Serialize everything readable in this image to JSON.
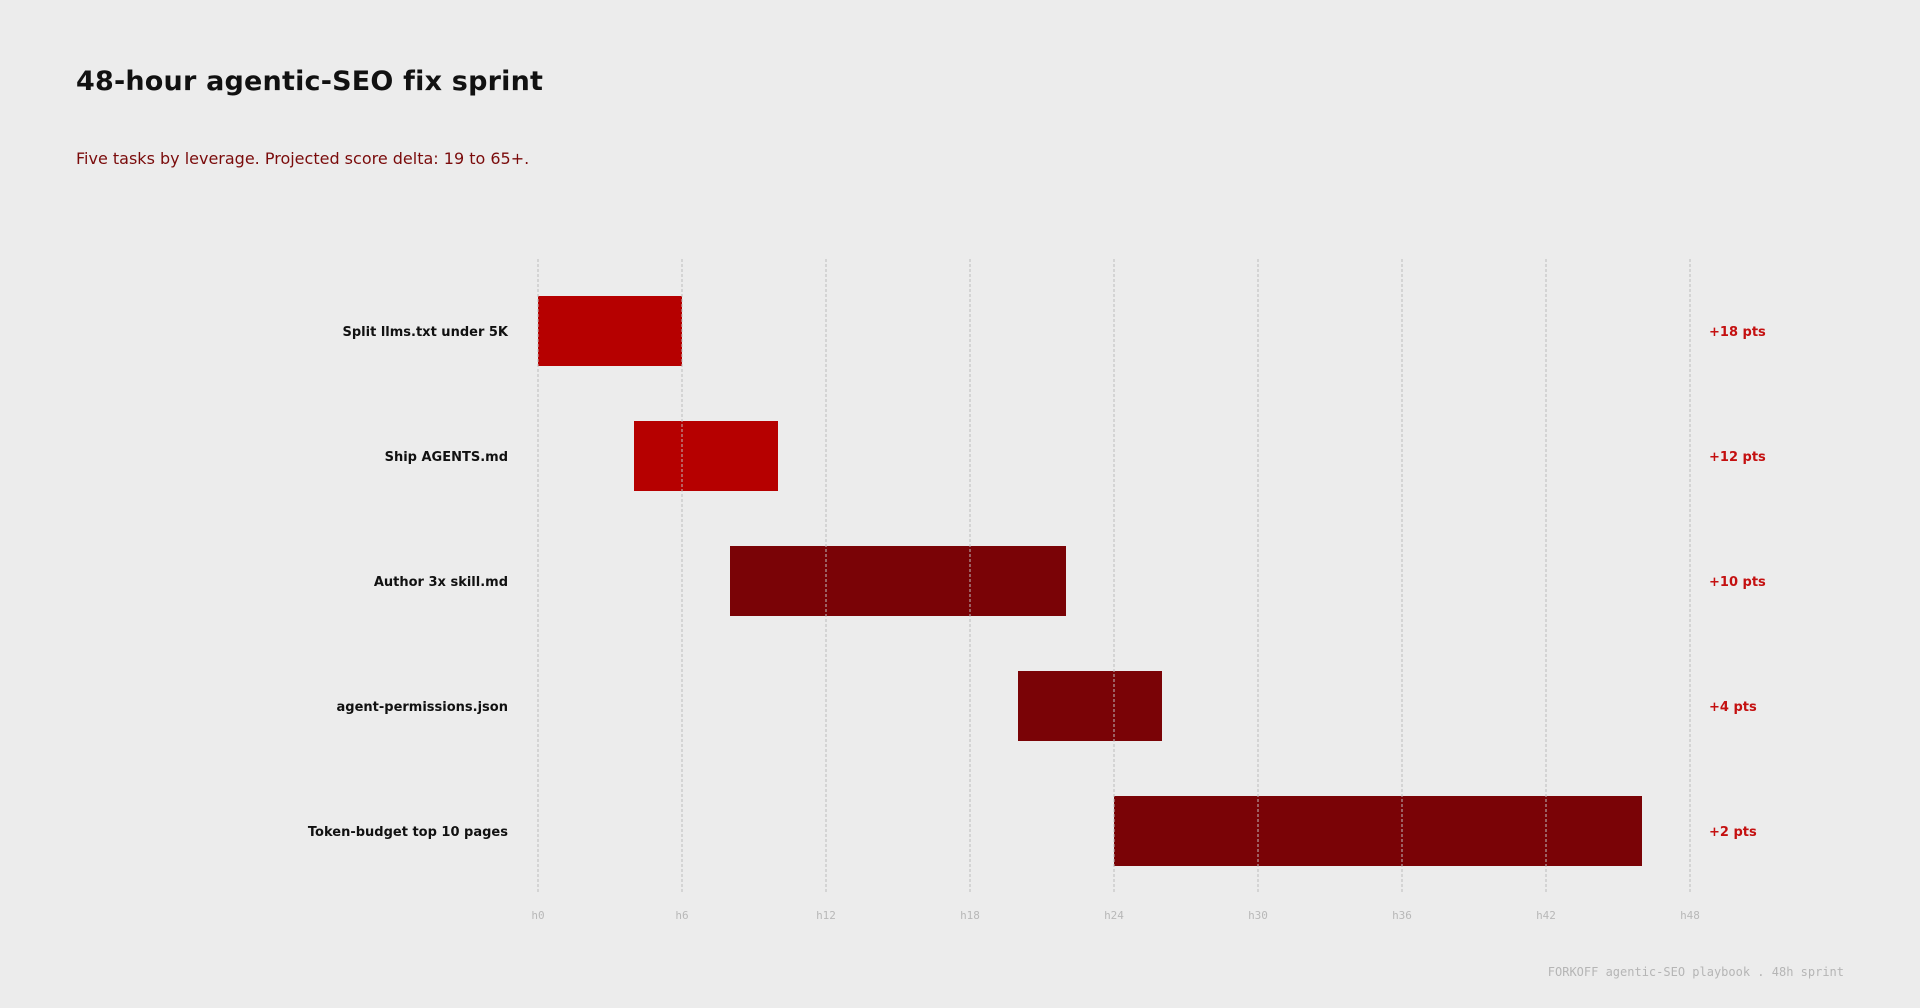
{
  "title": "48-hour agentic-SEO fix sprint",
  "subtitle": "Five tasks by leverage. Projected score delta: 19 to 65+.",
  "footer": "FORKOFF agentic-SEO playbook . 48h sprint",
  "colors": {
    "background": "#ececec",
    "high_leverage": "#b60000",
    "lower_leverage": "#7a0306",
    "delta_text": "#c41010",
    "grid": "#bdbdbd",
    "tick_text": "#b8b8b8",
    "label_text": "#111111"
  },
  "chart_data": {
    "type": "gantt",
    "x_ticks": [
      "h0",
      "h6",
      "h12",
      "h18",
      "h24",
      "h30",
      "h36",
      "h42",
      "h48"
    ],
    "xlim": [
      0,
      48
    ],
    "grid": "vertical dashed",
    "tasks": [
      {
        "label": "Split llms.txt under 5K",
        "start": 0,
        "end": 6,
        "delta": "+18 pts",
        "tier": "high"
      },
      {
        "label": "Ship AGENTS.md",
        "start": 4,
        "end": 10,
        "delta": "+12 pts",
        "tier": "high"
      },
      {
        "label": "Author 3x skill.md",
        "start": 8,
        "end": 22,
        "delta": "+10 pts",
        "tier": "lower"
      },
      {
        "label": "agent-permissions.json",
        "start": 20,
        "end": 26,
        "delta": "+4 pts",
        "tier": "lower"
      },
      {
        "label": "Token-budget top 10 pages",
        "start": 24,
        "end": 46,
        "delta": "+2 pts",
        "tier": "lower"
      }
    ]
  }
}
